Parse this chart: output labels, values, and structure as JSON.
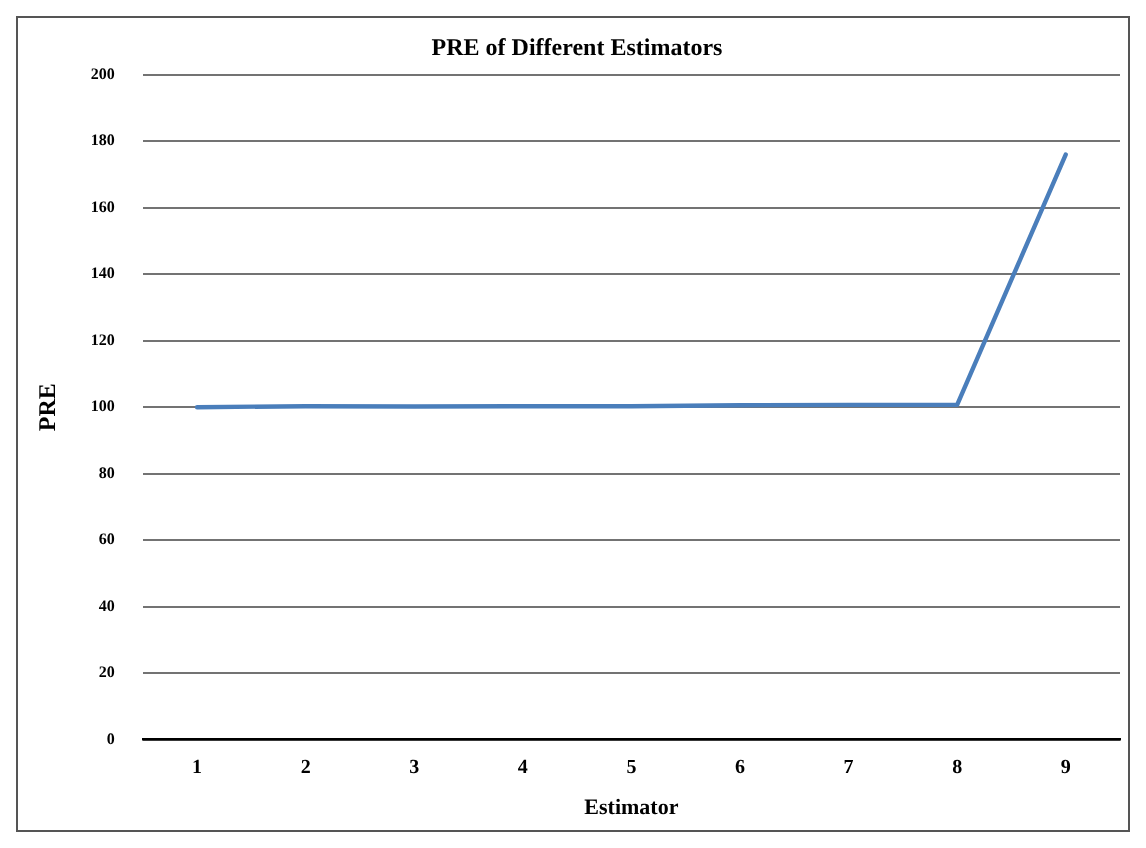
{
  "chart_data": {
    "type": "line",
    "title": "PRE of Different Estimators",
    "xlabel": "Estimator",
    "ylabel": "PRE",
    "categories": [
      "1",
      "2",
      "3",
      "4",
      "5",
      "6",
      "7",
      "8",
      "9"
    ],
    "series": [
      {
        "color": "#4a7ebb",
        "values": [
          100,
          100.3,
          100.2,
          100.3,
          100.3,
          100.6,
          100.7,
          100.7,
          176
        ]
      }
    ],
    "ylim": [
      0,
      200
    ],
    "yticks": [
      0,
      20,
      40,
      60,
      80,
      100,
      120,
      140,
      160,
      180,
      200
    ],
    "grid": "y",
    "legend": false,
    "marker": "none",
    "line_style": "solid"
  }
}
